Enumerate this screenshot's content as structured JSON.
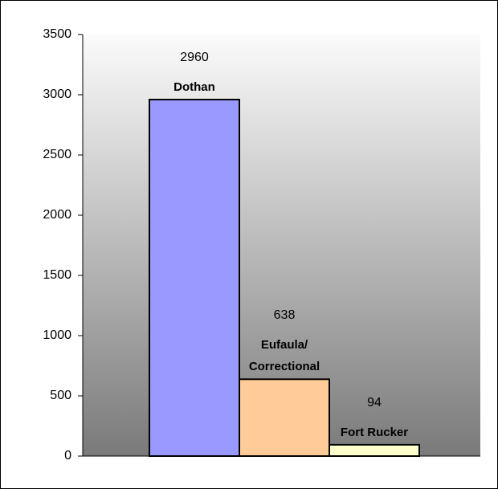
{
  "chart_data": {
    "type": "bar",
    "categories": [
      "Dothan",
      "Eufaula/ Correctional",
      "Fort Rucker"
    ],
    "values": [
      2960,
      638,
      94
    ],
    "colors": [
      "#9999ff",
      "#ffcc99",
      "#ffffcc"
    ],
    "ylim": [
      0,
      3500
    ],
    "yticks": [
      0,
      500,
      1000,
      1500,
      2000,
      2500,
      3000,
      3500
    ],
    "grid": false
  }
}
